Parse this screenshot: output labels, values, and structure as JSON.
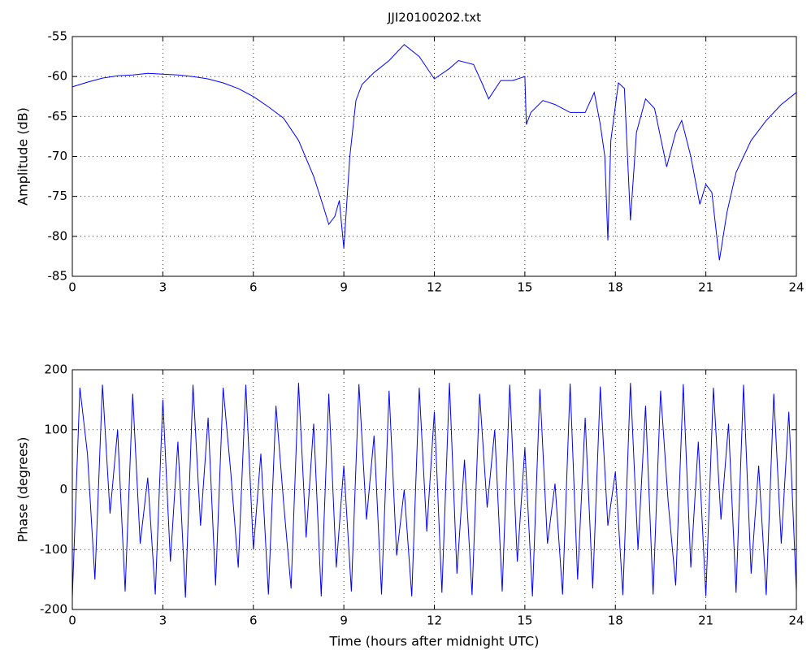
{
  "chart_data": [
    {
      "type": "line",
      "title": "JJI20100202.txt",
      "y_label": "Amplitude (dB)",
      "color": "#0000ff",
      "grid": true,
      "x": [
        0,
        0.5,
        1,
        1.5,
        2,
        2.5,
        3,
        3.5,
        4,
        4.5,
        5,
        5.5,
        6,
        6.5,
        7,
        7.5,
        8,
        8.3,
        8.5,
        8.7,
        8.85,
        9,
        9.2,
        9.4,
        9.6,
        10,
        10.5,
        11,
        11.5,
        12,
        12.5,
        12.8,
        13.3,
        13.6,
        13.8,
        14.2,
        14.6,
        15,
        15.05,
        15.2,
        15.6,
        16,
        16.5,
        17,
        17.3,
        17.5,
        17.65,
        17.75,
        17.85,
        18.1,
        18.3,
        18.5,
        18.7,
        19,
        19.3,
        19.7,
        20,
        20.2,
        20.5,
        20.8,
        21,
        21.2,
        21.45,
        21.7,
        22,
        22.5,
        23,
        23.5,
        24
      ],
      "values": [
        -61.3,
        -60.7,
        -60.2,
        -59.9,
        -59.8,
        -59.6,
        -59.7,
        -59.8,
        -60,
        -60.3,
        -60.8,
        -61.5,
        -62.5,
        -63.8,
        -65.2,
        -68,
        -72.5,
        -76,
        -78.5,
        -77.5,
        -75.5,
        -81.5,
        -70,
        -63,
        -61,
        -59.5,
        -58,
        -56,
        -57.5,
        -60.3,
        -59,
        -58,
        -58.5,
        -61,
        -62.8,
        -60.5,
        -60.5,
        -60,
        -66,
        -64.5,
        -63,
        -63.5,
        -64.5,
        -64.5,
        -62,
        -66,
        -70,
        -80.5,
        -68,
        -60.8,
        -61.5,
        -78,
        -67,
        -62.8,
        -64,
        -71.3,
        -67,
        -65.5,
        -70,
        -76,
        -73.5,
        -74.5,
        -83,
        -77,
        -72,
        -68,
        -65.5,
        -63.5,
        -62
      ],
      "xlim": [
        0,
        24
      ],
      "ylim": [
        -85,
        -55
      ],
      "xticks": [
        0,
        3,
        6,
        9,
        12,
        15,
        18,
        21,
        24
      ],
      "yticks": [
        -85,
        -80,
        -75,
        -70,
        -65,
        -60,
        -55
      ]
    },
    {
      "type": "line",
      "y_label": "Phase (degrees)",
      "x_label": "Time (hours after midnight UTC)",
      "color": "#0000ff",
      "grid": true,
      "x": [
        0,
        0.25,
        0.5,
        0.75,
        1,
        1.25,
        1.5,
        1.75,
        2,
        2.25,
        2.5,
        2.75,
        3,
        3.25,
        3.5,
        3.75,
        4,
        4.25,
        4.5,
        4.75,
        5,
        5.25,
        5.5,
        5.75,
        6,
        6.25,
        6.5,
        6.75,
        7,
        7.25,
        7.5,
        7.75,
        8,
        8.25,
        8.5,
        8.75,
        9,
        9.25,
        9.5,
        9.75,
        10,
        10.25,
        10.5,
        10.75,
        11,
        11.25,
        11.5,
        11.75,
        12,
        12.25,
        12.5,
        12.75,
        13,
        13.25,
        13.5,
        13.75,
        14,
        14.25,
        14.5,
        14.75,
        15,
        15.25,
        15.5,
        15.75,
        16,
        16.25,
        16.5,
        16.75,
        17,
        17.25,
        17.5,
        17.75,
        18,
        18.25,
        18.5,
        18.75,
        19,
        19.25,
        19.5,
        19.75,
        20,
        20.25,
        20.5,
        20.75,
        21,
        21.25,
        21.5,
        21.75,
        22,
        22.25,
        22.5,
        22.75,
        23,
        23.25,
        23.5,
        23.75,
        24
      ],
      "values": [
        -180,
        170,
        60,
        -150,
        175,
        -40,
        100,
        -170,
        160,
        -90,
        20,
        -175,
        150,
        -120,
        80,
        -180,
        175,
        -60,
        120,
        -160,
        170,
        30,
        -130,
        175,
        -100,
        60,
        -175,
        140,
        -20,
        -165,
        178,
        -80,
        110,
        -178,
        160,
        -130,
        40,
        -170,
        176,
        -50,
        90,
        -175,
        165,
        -110,
        0,
        -178,
        170,
        -70,
        130,
        -172,
        178,
        -140,
        50,
        -176,
        160,
        -30,
        100,
        -170,
        175,
        -120,
        70,
        -178,
        168,
        -90,
        10,
        -175,
        177,
        -150,
        120,
        -165,
        172,
        -60,
        30,
        -176,
        178,
        -100,
        140,
        -175,
        165,
        -20,
        -160,
        176,
        -130,
        80,
        -178,
        170,
        -50,
        110,
        -172,
        175,
        -140,
        40,
        -176,
        160,
        -90,
        130,
        -170
      ],
      "xlim": [
        0,
        24
      ],
      "ylim": [
        -200,
        200
      ],
      "xticks": [
        0,
        3,
        6,
        9,
        12,
        15,
        18,
        21,
        24
      ],
      "yticks": [
        -200,
        -100,
        0,
        100,
        200
      ]
    }
  ]
}
